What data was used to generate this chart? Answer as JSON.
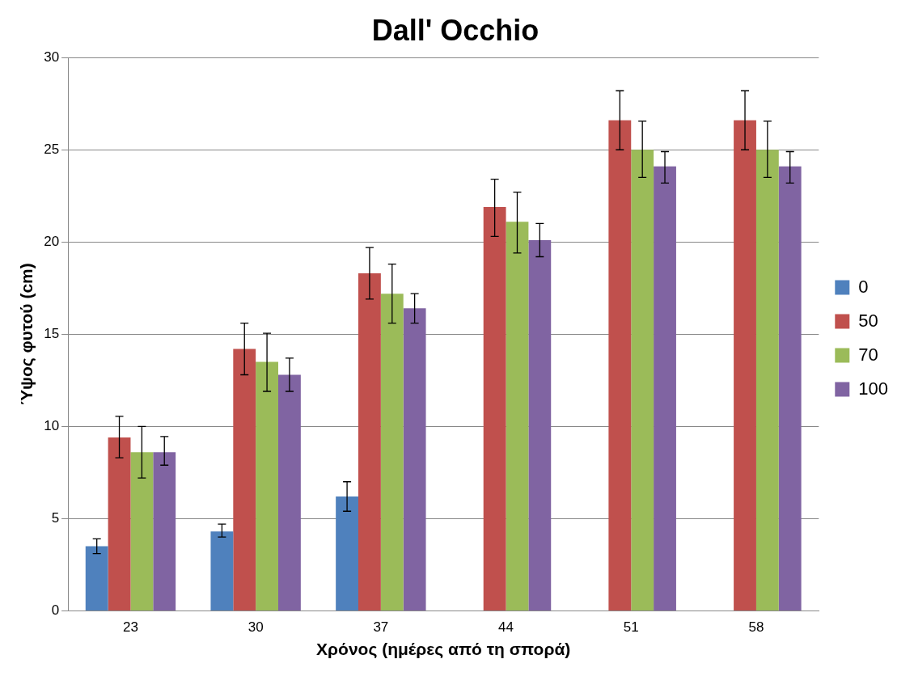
{
  "chart_data": {
    "type": "bar",
    "title": "Dall' Occhio",
    "xlabel": "Χρόνος (ημέρες από τη σπορά)",
    "ylabel": "Ύψος φυτού (cm)",
    "categories": [
      "23",
      "30",
      "37",
      "44",
      "51",
      "58"
    ],
    "series": [
      {
        "name": "0",
        "color": "#4f81bd",
        "values": [
          3.5,
          4.3,
          6.2,
          0,
          0,
          0
        ],
        "errors": [
          [
            3.1,
            3.9
          ],
          [
            4.0,
            4.7
          ],
          [
            5.4,
            7.0
          ],
          null,
          null,
          null
        ]
      },
      {
        "name": "50",
        "color": "#c0504d",
        "values": [
          9.4,
          14.2,
          18.3,
          21.9,
          26.6,
          26.6
        ],
        "errors": [
          [
            8.3,
            10.55
          ],
          [
            12.8,
            15.6
          ],
          [
            16.9,
            19.7
          ],
          [
            20.3,
            23.4
          ],
          [
            25.0,
            28.2
          ],
          [
            25.0,
            28.2
          ]
        ]
      },
      {
        "name": "70",
        "color": "#9bbb59",
        "values": [
          8.6,
          13.5,
          17.2,
          21.1,
          25.0,
          25.0
        ],
        "errors": [
          [
            7.2,
            10.0
          ],
          [
            11.9,
            15.05
          ],
          [
            15.6,
            18.8
          ],
          [
            19.4,
            22.7
          ],
          [
            23.5,
            26.55
          ],
          [
            23.5,
            26.55
          ]
        ]
      },
      {
        "name": "100",
        "color": "#8064a2",
        "values": [
          8.6,
          12.8,
          16.4,
          20.1,
          24.1,
          24.1
        ],
        "errors": [
          [
            7.9,
            9.45
          ],
          [
            11.9,
            13.7
          ],
          [
            15.6,
            17.2
          ],
          [
            19.2,
            21.0
          ],
          [
            23.2,
            24.9
          ],
          [
            23.2,
            24.9
          ]
        ]
      }
    ],
    "ylim": [
      0,
      30
    ],
    "yticks": [
      0,
      5,
      10,
      15,
      20,
      25,
      30
    ],
    "grid": "y",
    "legend": "right"
  }
}
